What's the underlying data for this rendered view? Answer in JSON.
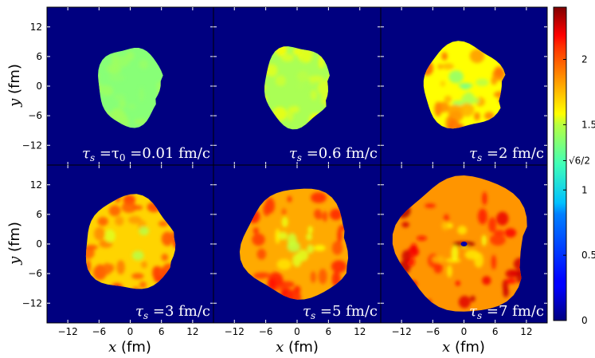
{
  "chart_data": {
    "type": "heatmap",
    "layout": "2x3 panel grid with shared colorbar on the right",
    "colormap": "jet",
    "background_value": 0,
    "x_axis": {
      "label_var": "x",
      "label_unit": " (fm)",
      "range": [
        -16,
        16
      ],
      "ticks": [
        -12,
        -6,
        0,
        6,
        12
      ],
      "tick_labels": [
        "−12",
        "−6",
        "0",
        "6",
        "12"
      ]
    },
    "y_axis": {
      "label_var": "y",
      "label_unit": " (fm)",
      "range": [
        -16,
        16
      ],
      "ticks": [
        12,
        6,
        0,
        -6,
        -12
      ],
      "tick_labels": [
        "12",
        "6",
        "0",
        "−6",
        "−12"
      ]
    },
    "colorbar": {
      "range": [
        0,
        2.4
      ],
      "ticks": [
        0,
        0.5,
        1,
        1.5,
        2
      ],
      "tick_labels": [
        "0",
        "0.5",
        "1",
        "1.5",
        "2"
      ],
      "special_tick": {
        "value": 1.2247,
        "label": "√6/2"
      }
    },
    "panels": [
      {
        "annotation": "τs =τ0 =0.01 fm/c",
        "ann_main": "τ",
        "ann_sub": "s",
        "ann_rest": " =τ",
        "ann_sub2": "0",
        "ann_tail": " =0.01 fm/c",
        "radius_fm": 8,
        "typical_value": 1.22,
        "peak_value": 1.3
      },
      {
        "annotation": "τs =0.6 fm/c",
        "ann_main": "τ",
        "ann_sub": "s",
        "ann_rest": " =0.6 fm/c",
        "radius_fm": 8.2,
        "typical_value": 1.3,
        "peak_value": 1.5
      },
      {
        "annotation": "τs =2 fm/c",
        "ann_main": "τ",
        "ann_sub": "s",
        "ann_rest": " =2 fm/c",
        "radius_fm": 8.6,
        "typical_value": 1.5,
        "peak_value": 1.9
      },
      {
        "annotation": "τs =3 fm/c",
        "ann_main": "τ",
        "ann_sub": "s",
        "ann_rest": " =3 fm/c",
        "radius_fm": 9.5,
        "typical_value": 1.6,
        "peak_value": 2.0
      },
      {
        "annotation": "τs =5 fm/c",
        "ann_main": "τ",
        "ann_sub": "s",
        "ann_rest": " =5 fm/c",
        "radius_fm": 11.2,
        "typical_value": 1.7,
        "peak_value": 2.1
      },
      {
        "annotation": "τs =7 fm/c",
        "ann_main": "τ",
        "ann_sub": "s",
        "ann_rest": " =7 fm/c",
        "radius_fm": 13.8,
        "typical_value": 1.75,
        "peak_value": 2.3
      }
    ]
  }
}
